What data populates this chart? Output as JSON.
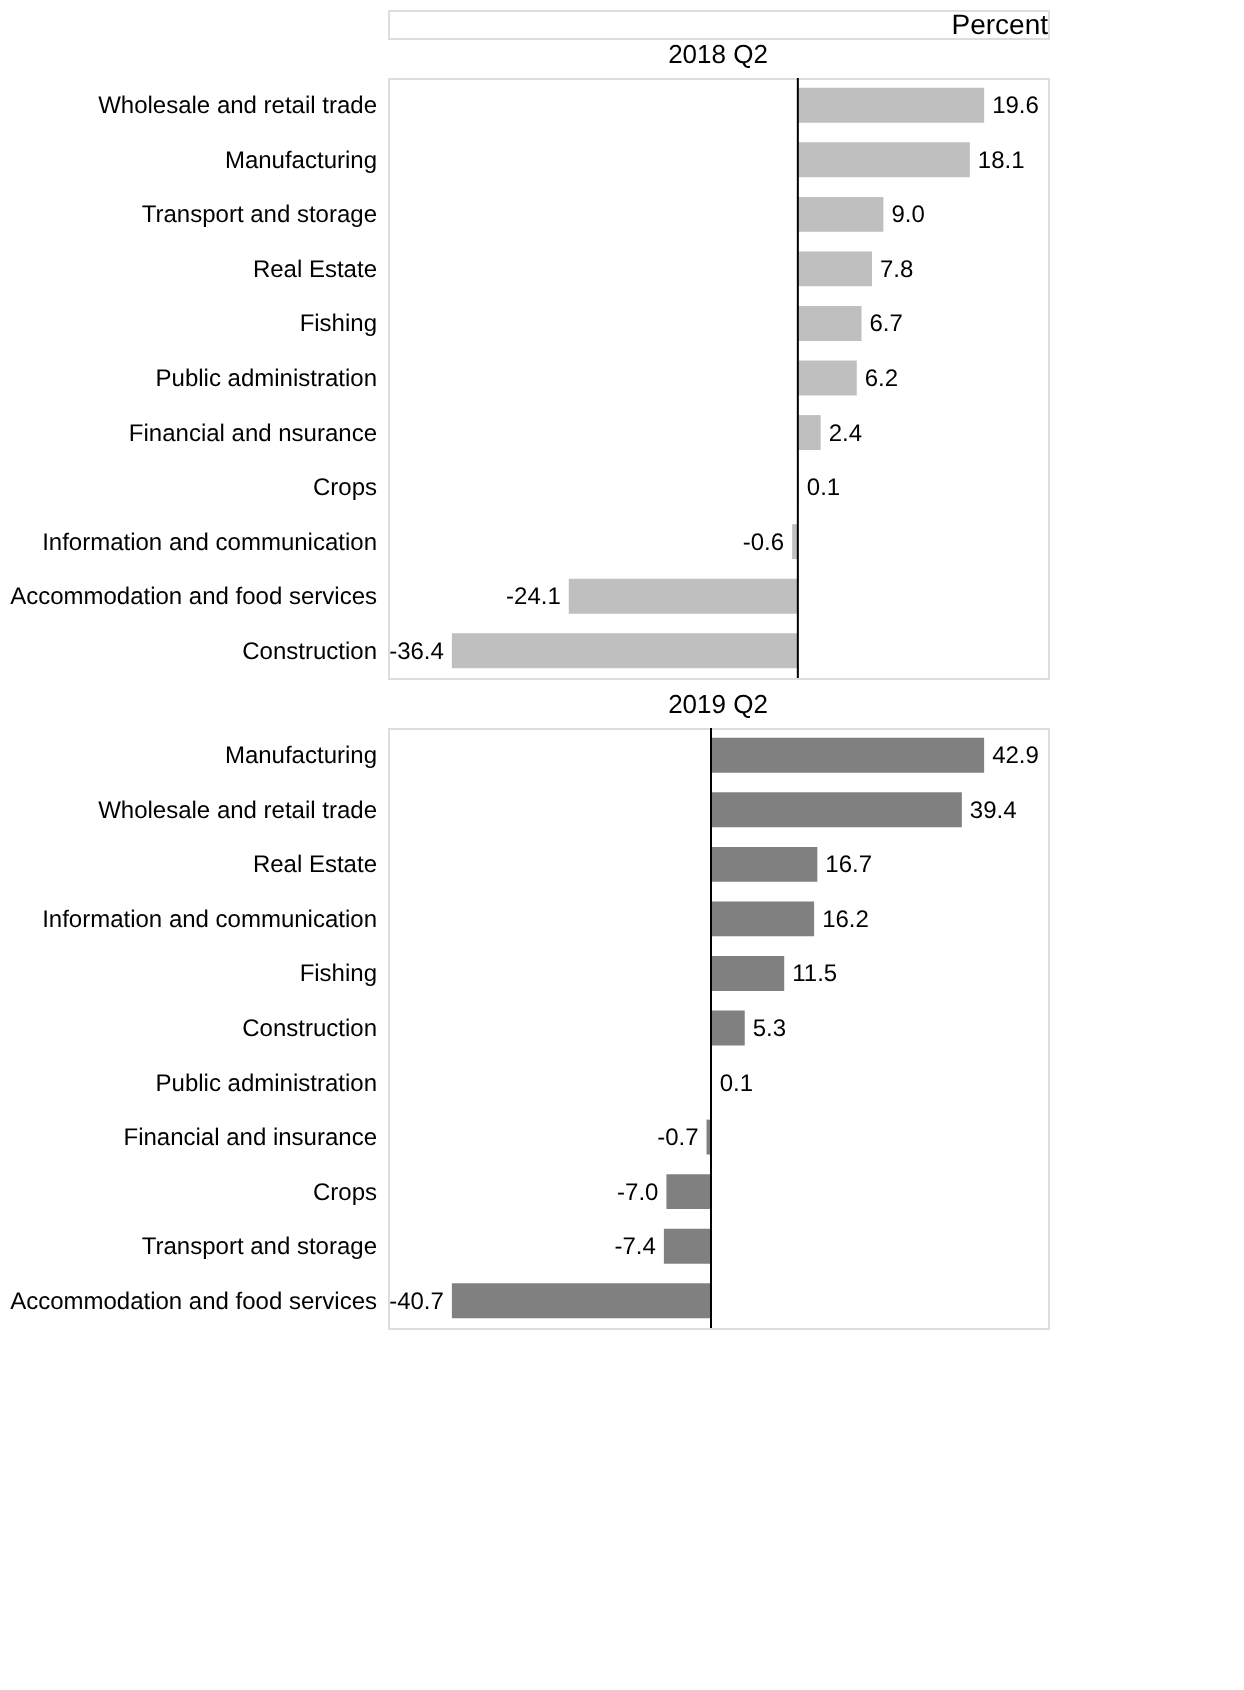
{
  "chart_data": [
    {
      "type": "bar",
      "orientation": "horizontal",
      "title": "2018 Q2",
      "annotations": [
        "Percent"
      ],
      "tick_labels": "y",
      "categories": [
        "Wholesale and retail trade",
        "Manufacturing",
        "Transport and storage",
        "Real Estate",
        "Fishing",
        "Public administration",
        "Financial and nsurance",
        "Crops",
        "Information and communication",
        "Accommodation and food services",
        "Construction"
      ],
      "series": [
        {
          "color": "#bfbfbf",
          "values": [
            19.6,
            18.1,
            9.0,
            7.8,
            6.7,
            6.2,
            2.4,
            0.1,
            -0.6,
            -24.1,
            -36.4
          ],
          "value_labels": [
            "19.6",
            "18.1",
            "9.0",
            "7.8",
            "6.7",
            "6.2",
            "2.4",
            "0.1",
            "-0.6",
            "-24.1",
            "-36.4"
          ]
        }
      ]
    },
    {
      "type": "bar",
      "orientation": "horizontal",
      "title": "2019 Q2",
      "tick_labels": "y",
      "categories": [
        "Manufacturing",
        "Wholesale and retail trade",
        "Real Estate",
        "Information and communication",
        "Fishing",
        "Construction",
        "Public administration",
        "Financial and insurance",
        "Crops",
        "Transport and storage",
        "Accommodation and food services"
      ],
      "series": [
        {
          "color": "#808080",
          "values": [
            42.9,
            39.4,
            16.7,
            16.2,
            11.5,
            5.3,
            0.1,
            -0.7,
            -7.0,
            -7.4,
            -40.7
          ],
          "value_labels": [
            "42.9",
            "39.4",
            "16.7",
            "16.2",
            "11.5",
            "5.3",
            "0.1",
            "-0.7",
            "-7.0",
            "-7.4",
            "-40.7"
          ]
        }
      ]
    }
  ]
}
